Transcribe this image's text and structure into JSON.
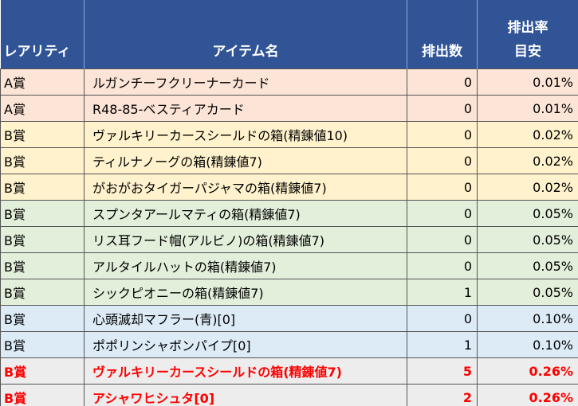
{
  "table": {
    "headers": {
      "rarity": "レアリティ",
      "item": "アイテム名",
      "count": "排出数",
      "rate": [
        "排出率",
        "目安"
      ]
    },
    "rows": [
      {
        "rarity": "A賞",
        "item": "ルガンチーフクリーナーカード",
        "count": 0,
        "rate": "0.01%",
        "color": "#fce4d6"
      },
      {
        "rarity": "A賞",
        "item": "R48-85-ベスティアカード",
        "count": 0,
        "rate": "0.01%",
        "color": "#fce4d6"
      },
      {
        "rarity": "B賞",
        "item": "ヴァルキリーカースシールドの箱(精錬値10)",
        "count": 0,
        "rate": "0.02%",
        "color": "#fff2cc"
      },
      {
        "rarity": "B賞",
        "item": "ティルナノーグの箱(精錬値7)",
        "count": 0,
        "rate": "0.02%",
        "color": "#fff2cc"
      },
      {
        "rarity": "B賞",
        "item": "がおがおタイガーパジャマの箱(精錬値7)",
        "count": 0,
        "rate": "0.02%",
        "color": "#fff2cc"
      },
      {
        "rarity": "B賞",
        "item": "スプンタアールマティの箱(精錬値7)",
        "count": 0,
        "rate": "0.05%",
        "color": "#e2efda"
      },
      {
        "rarity": "B賞",
        "item": "リス耳フード帽(アルビノ)の箱(精錬値7)",
        "count": 0,
        "rate": "0.05%",
        "color": "#e2efda"
      },
      {
        "rarity": "B賞",
        "item": "アルタイルハットの箱(精錬値7)",
        "count": 0,
        "rate": "0.05%",
        "color": "#e2efda"
      },
      {
        "rarity": "B賞",
        "item": "シックピオニーの箱(精錬値7)",
        "count": 1,
        "rate": "0.05%",
        "color": "#e2efda"
      },
      {
        "rarity": "B賞",
        "item": "心頭滅却マフラー(青)[0]",
        "count": 0,
        "rate": "0.10%",
        "color": "#ddebf7"
      },
      {
        "rarity": "B賞",
        "item": "ポポリンシャボンパイプ[0]",
        "count": 1,
        "rate": "0.10%",
        "color": "#ddebf7"
      },
      {
        "rarity": "B賞",
        "item": "ヴァルキリーカースシールドの箱(精錬値7)",
        "count": 5,
        "rate": "0.26%",
        "color": "#ededed",
        "text_color": "#ff0000"
      },
      {
        "rarity": "B賞",
        "item": "アシャワヒシュタ[0]",
        "count": 2,
        "rate": "0.26%",
        "color": "#ededed",
        "text_color": "#ff0000"
      }
    ]
  }
}
